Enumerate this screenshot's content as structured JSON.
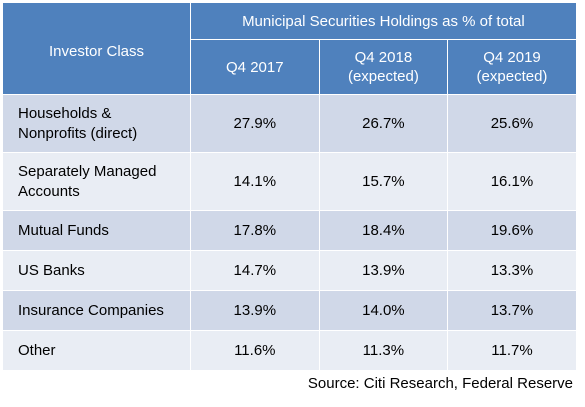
{
  "chart_data": {
    "type": "table",
    "title": "Municipal Securities Holdings as % of total",
    "columns": [
      "Investor Class",
      "Q4 2017",
      "Q4 2018 (expected)",
      "Q4 2019 (expected)"
    ],
    "header": {
      "investor_class": "Investor Class",
      "group_title": "Municipal Securities Holdings as % of total",
      "periods": [
        {
          "line1": "Q4 2017",
          "line2": ""
        },
        {
          "line1": "Q4 2018",
          "line2": "(expected)"
        },
        {
          "line1": "Q4 2019",
          "line2": "(expected)"
        }
      ]
    },
    "rows": [
      {
        "label_lines": [
          "Households &",
          "Nonprofits (direct)"
        ],
        "values": [
          "27.9%",
          "26.7%",
          "25.6%"
        ]
      },
      {
        "label_lines": [
          "Separately Managed",
          "Accounts"
        ],
        "values": [
          "14.1%",
          "15.7%",
          "16.1%"
        ]
      },
      {
        "label_lines": [
          "Mutual Funds"
        ],
        "values": [
          "17.8%",
          "18.4%",
          "19.6%"
        ]
      },
      {
        "label_lines": [
          "US Banks"
        ],
        "values": [
          "14.7%",
          "13.9%",
          "13.3%"
        ]
      },
      {
        "label_lines": [
          "Insurance Companies"
        ],
        "values": [
          "13.9%",
          "14.0%",
          "13.7%"
        ]
      },
      {
        "label_lines": [
          "Other"
        ],
        "values": [
          "11.6%",
          "11.3%",
          "11.7%"
        ]
      }
    ],
    "source": "Source: Citi Research, Federal Reserve"
  },
  "colors": {
    "header_bg": "#4f81bd",
    "row_odd": "#d0d8e8",
    "row_even": "#e9edf4"
  }
}
